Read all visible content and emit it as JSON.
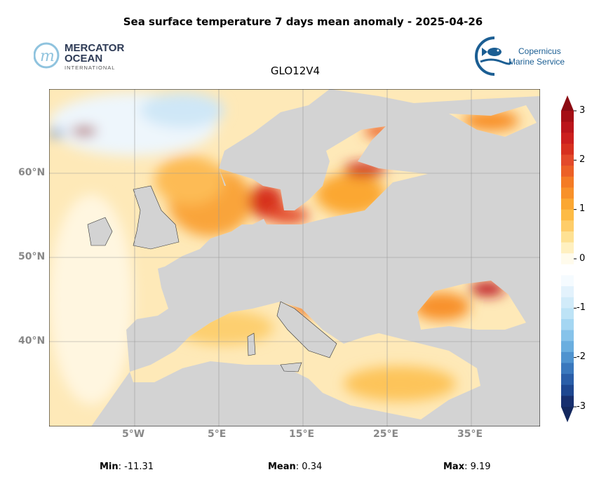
{
  "title": "Sea surface temperature 7 days mean anomaly - 2025-04-26",
  "subtitle": "GLO12V4",
  "logos": {
    "mercator": {
      "line1": "MERCATOR",
      "line2": "OCEAN",
      "line3": "INTERNATIONAL"
    },
    "copernicus": {
      "line1": "Copernicus",
      "line2": "Marine Service"
    }
  },
  "map": {
    "land_color": "#d3d3d3",
    "lat_labels": [
      "60°N",
      "50°N",
      "40°N"
    ],
    "lon_labels": [
      "5°W",
      "5°E",
      "15°E",
      "25°E",
      "35°E"
    ]
  },
  "colorbar": {
    "ticks": [
      "3",
      "2",
      "1",
      "0",
      "-1",
      "-2",
      "-3"
    ],
    "colors": [
      "#a50f15",
      "#bb151b",
      "#cc1f1e",
      "#d7301f",
      "#e34a2a",
      "#ec6026",
      "#f47b25",
      "#f8912a",
      "#fba732",
      "#fdbb45",
      "#fecd69",
      "#fee193",
      "#fff0c0",
      "#fffbec",
      "#ffffff",
      "#f5fbff",
      "#e3f2fc",
      "#d1ebf9",
      "#bde3f6",
      "#a4d6f2",
      "#86c3ea",
      "#6aaedf",
      "#4f93cf",
      "#3a78bd",
      "#2a5ea8",
      "#1e4790",
      "#172f6e"
    ],
    "over_color": "#8b0a12",
    "under_color": "#14285e"
  },
  "stats": {
    "min_label": "Min",
    "min_value": "-11.31",
    "mean_label": "Mean",
    "mean_value": "0.34",
    "max_label": "Max",
    "max_value": "9.19"
  }
}
